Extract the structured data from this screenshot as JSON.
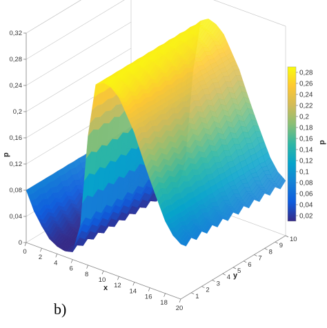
{
  "panel_label": "b)",
  "chart_data": {
    "type": "surface3d",
    "title": "",
    "xlabel": "x",
    "ylabel": "y",
    "zlabel": "p",
    "colorbar_label": "p",
    "xlim": [
      0,
      20
    ],
    "ylim": [
      0,
      10
    ],
    "zlim": [
      0,
      0.32
    ],
    "clim": [
      0.01,
      0.29
    ],
    "x_ticks": [
      "0",
      "2",
      "4",
      "6",
      "8",
      "10",
      "12",
      "14",
      "16",
      "18",
      "20"
    ],
    "y_ticks": [
      "1",
      "2",
      "3",
      "4",
      "5",
      "6",
      "7",
      "8",
      "9",
      "10"
    ],
    "z_ticks": [
      "0",
      "0,04",
      "0,08",
      "0,12",
      "0,16",
      "0,2",
      "0,24",
      "0,28",
      "0,32"
    ],
    "colorbar_ticks": [
      "0,02",
      "0,04",
      "0,06",
      "0,08",
      "0,1",
      "0,12",
      "0,14",
      "0,16",
      "0,18",
      "0,2",
      "0,22",
      "0,24",
      "0,26",
      "0,28"
    ],
    "colormap": [
      "#352a87",
      "#0f5cdd",
      "#1481d6",
      "#06a4ca",
      "#2eb7a4",
      "#87bf77",
      "#d1bb59",
      "#fec832",
      "#f9fb0e"
    ],
    "grid": true,
    "profile_along_x": {
      "x": [
        0,
        1,
        2,
        3,
        4,
        5,
        6,
        7,
        8,
        9,
        10,
        11,
        12,
        13,
        14,
        15,
        16,
        17,
        18,
        19,
        20
      ],
      "p": [
        0.08,
        0.05,
        0.03,
        0.015,
        0.01,
        0.01,
        0.015,
        0.06,
        0.2,
        0.28,
        0.285,
        0.28,
        0.27,
        0.25,
        0.23,
        0.2,
        0.17,
        0.14,
        0.11,
        0.09,
        0.08
      ]
    }
  }
}
